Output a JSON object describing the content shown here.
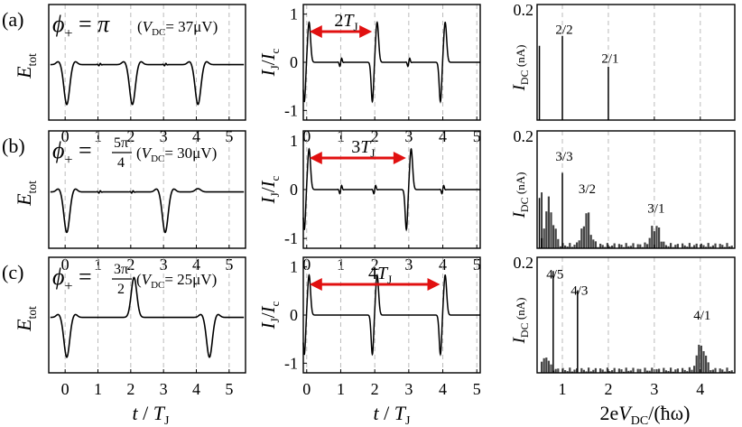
{
  "chart_data": [
    {
      "type": "line",
      "title": "",
      "panel_label": "(a)",
      "phi_symbol": "ϕ",
      "phi_sub": "+",
      "phi_value": "π",
      "vdc_text": "(VDC= 37μV)",
      "xlabel": "t / TJ",
      "ylabel": "Etot",
      "xlim": [
        -0.5,
        5.5
      ],
      "xticks": [
        0,
        1,
        2,
        3,
        4,
        5
      ],
      "series": [
        {
          "name": "Etot",
          "dip_positions": [
            0.05,
            2.05,
            4.05
          ],
          "dip_depth": -0.75,
          "peak_positions": [],
          "ripple_positions": [
            1.05,
            3.05
          ]
        }
      ]
    },
    {
      "type": "line",
      "panel_label": "",
      "xlabel": "t / TJ",
      "ylabel": "IJ / Ic",
      "xlim": [
        -0.1,
        5.1
      ],
      "ylim": [
        -1.2,
        1.2
      ],
      "xticks": [
        0,
        1,
        2,
        3,
        4,
        5
      ],
      "yticks": [
        -1,
        0,
        1
      ],
      "annotation": "2TJ",
      "annotation_span": [
        0.0,
        2.0
      ],
      "series": [
        {
          "name": "IJ/Ic",
          "pulse_positions": [
            0.0,
            2.0,
            4.0
          ],
          "minor_positions": [
            1.0,
            3.0
          ],
          "peak": 0.78,
          "trough": -0.82
        }
      ]
    },
    {
      "type": "bar",
      "panel_label": "",
      "xlabel": "2eVDC/(ħω)",
      "ylabel": "IDC (nA)",
      "xlim": [
        0.45,
        4.75
      ],
      "ylim": [
        0,
        0.21
      ],
      "xticks": [
        1,
        2,
        3,
        4
      ],
      "yticks": [
        0.2
      ],
      "labels": [
        {
          "x": 1.0,
          "y": 0.15,
          "text": "2/2"
        },
        {
          "x": 2.0,
          "y": 0.098,
          "text": "2/1"
        }
      ],
      "series": [
        {
          "name": "IDC",
          "x": [
            0.5,
            1.0,
            2.0
          ],
          "values": [
            0.135,
            0.153,
            0.097
          ]
        }
      ]
    },
    {
      "type": "line",
      "panel_label": "(b)",
      "phi_symbol": "ϕ",
      "phi_sub": "+",
      "phi_num": "5π",
      "phi_den": "4",
      "vdc_text": "(VDC= 30μV)",
      "xlabel": "t / TJ",
      "ylabel": "Etot",
      "xlim": [
        -0.5,
        5.5
      ],
      "xticks": [
        0,
        1,
        2,
        3,
        4,
        5
      ],
      "series": [
        {
          "name": "Etot",
          "dip_positions": [
            0.05,
            3.05
          ],
          "dip_depth": -0.75,
          "peak_positions": [
            4.05
          ],
          "peak_height": 0.06,
          "ripple_positions": [
            1.05,
            2.05
          ]
        }
      ]
    },
    {
      "type": "line",
      "panel_label": "",
      "xlabel": "t / TJ",
      "ylabel": "IJ / Ic",
      "xlim": [
        -0.1,
        5.1
      ],
      "ylim": [
        -1.2,
        1.2
      ],
      "xticks": [
        0,
        1,
        2,
        3,
        4,
        5
      ],
      "yticks": [
        -1,
        0,
        1
      ],
      "annotation": "3TJ",
      "annotation_span": [
        0.0,
        3.0
      ],
      "series": [
        {
          "name": "IJ/Ic",
          "pulse_positions": [
            0.0,
            3.0
          ],
          "minor_positions": [
            1.0,
            2.0,
            4.0
          ],
          "peak": 0.78,
          "trough": -0.82
        }
      ]
    },
    {
      "type": "bar",
      "panel_label": "",
      "xlabel": "2eVDC/(ħω)",
      "ylabel": "IDC (nA)",
      "xlim": [
        0.45,
        4.75
      ],
      "ylim": [
        0,
        0.21
      ],
      "xticks": [
        1,
        2,
        3,
        4
      ],
      "yticks": [
        0.2
      ],
      "labels": [
        {
          "x": 1.0,
          "y": 0.15,
          "text": "3/3"
        },
        {
          "x": 1.5,
          "y": 0.092,
          "text": "3/2"
        },
        {
          "x": 3.0,
          "y": 0.057,
          "text": "3/1"
        }
      ],
      "series": [
        {
          "name": "IDC",
          "x": [
            0.5,
            0.55,
            0.67,
            0.75,
            1.0,
            1.5,
            3.0
          ],
          "values": [
            0.09,
            0.1,
            0.07,
            0.03,
            0.135,
            0.068,
            0.047
          ]
        }
      ]
    },
    {
      "type": "line",
      "panel_label": "(c)",
      "phi_symbol": "ϕ",
      "phi_sub": "+",
      "phi_num": "3π",
      "phi_den": "2",
      "vdc_text": "(VDC= 25μV)",
      "xlabel": "t / TJ",
      "ylabel": "Etot",
      "xlim": [
        -0.5,
        5.5
      ],
      "xticks": [
        0,
        1,
        2,
        3,
        4,
        5
      ],
      "series": [
        {
          "name": "Etot",
          "dip_positions": [
            0.05,
            4.4
          ],
          "dip_depth": -0.75,
          "peak_positions": [
            2.1
          ],
          "peak_height": 0.75,
          "ripple_positions": []
        }
      ]
    },
    {
      "type": "line",
      "panel_label": "",
      "xlabel": "t / TJ",
      "ylabel": "IJ / Ic",
      "xlim": [
        -0.1,
        5.1
      ],
      "ylim": [
        -1.2,
        1.2
      ],
      "xticks": [
        0,
        1,
        2,
        3,
        4,
        5
      ],
      "yticks": [
        -1,
        0,
        1
      ],
      "annotation": "4TJ",
      "annotation_span": [
        0.0,
        4.0
      ],
      "series": [
        {
          "name": "IJ/Ic",
          "pulse_positions": [
            0.0,
            2.0,
            4.0
          ],
          "minor_positions": [],
          "peak": 0.78,
          "trough": -0.82
        }
      ]
    },
    {
      "type": "bar",
      "panel_label": "",
      "xlabel": "2eVDC/(ħω)",
      "ylabel": "IDC (nA)",
      "xlim": [
        0.45,
        4.75
      ],
      "ylim": [
        0,
        0.21
      ],
      "xticks": [
        1,
        2,
        3,
        4
      ],
      "yticks": [
        0.2
      ],
      "labels": [
        {
          "x": 0.8,
          "y": 0.165,
          "text": "4/5"
        },
        {
          "x": 1.33,
          "y": 0.135,
          "text": "4/3"
        },
        {
          "x": 4.0,
          "y": 0.09,
          "text": "4/1"
        }
      ],
      "series": [
        {
          "name": "IDC",
          "x": [
            0.6,
            0.8,
            1.33,
            4.0
          ],
          "values": [
            0.03,
            0.185,
            0.15,
            0.06
          ]
        }
      ]
    }
  ],
  "axis_titles": {
    "time_base": "t",
    "time_slash": " / ",
    "time_T": "T",
    "time_sub": "J",
    "freq_pre": "2e",
    "freq_V": "V",
    "freq_sub": "DC",
    "freq_post": "/(ħω)"
  },
  "ylabel_parts": {
    "E": "E",
    "E_sub": "tot",
    "I": "I",
    "I_sub": "J",
    "Ic": "I",
    "Ic_sub": "c",
    "IDC": "I",
    "IDC_sub": "DC",
    "IDC_unit": " (nA)"
  },
  "colors": {
    "arrow": "#e11010",
    "line": "#000000",
    "grid": "#bbbbbb",
    "bar": "#444444"
  }
}
